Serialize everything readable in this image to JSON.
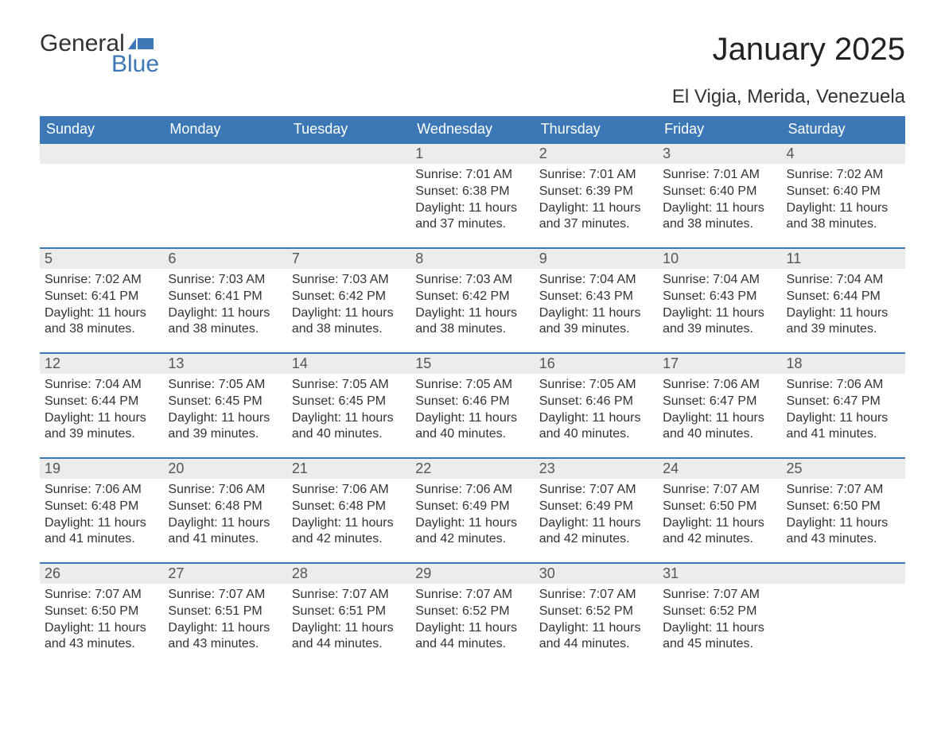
{
  "logo": {
    "word1": "General",
    "word2": "Blue",
    "shape_color": "#3b78b5"
  },
  "title": "January 2025",
  "location": "El Vigia, Merida, Venezuela",
  "colors": {
    "header_bg": "#3b78b5",
    "header_text": "#ffffff",
    "daynum_bg": "#ececec",
    "daynum_border": "#3b78b5",
    "body_text": "#333333",
    "page_bg": "#ffffff"
  },
  "layout": {
    "columns": 7,
    "rows": 5,
    "start_weekday": "Sunday"
  },
  "weekdays": [
    "Sunday",
    "Monday",
    "Tuesday",
    "Wednesday",
    "Thursday",
    "Friday",
    "Saturday"
  ],
  "weeks": [
    [
      null,
      null,
      null,
      {
        "n": "1",
        "sunrise": "7:01 AM",
        "sunset": "6:38 PM",
        "daylight": "11 hours and 37 minutes."
      },
      {
        "n": "2",
        "sunrise": "7:01 AM",
        "sunset": "6:39 PM",
        "daylight": "11 hours and 37 minutes."
      },
      {
        "n": "3",
        "sunrise": "7:01 AM",
        "sunset": "6:40 PM",
        "daylight": "11 hours and 38 minutes."
      },
      {
        "n": "4",
        "sunrise": "7:02 AM",
        "sunset": "6:40 PM",
        "daylight": "11 hours and 38 minutes."
      }
    ],
    [
      {
        "n": "5",
        "sunrise": "7:02 AM",
        "sunset": "6:41 PM",
        "daylight": "11 hours and 38 minutes."
      },
      {
        "n": "6",
        "sunrise": "7:03 AM",
        "sunset": "6:41 PM",
        "daylight": "11 hours and 38 minutes."
      },
      {
        "n": "7",
        "sunrise": "7:03 AM",
        "sunset": "6:42 PM",
        "daylight": "11 hours and 38 minutes."
      },
      {
        "n": "8",
        "sunrise": "7:03 AM",
        "sunset": "6:42 PM",
        "daylight": "11 hours and 38 minutes."
      },
      {
        "n": "9",
        "sunrise": "7:04 AM",
        "sunset": "6:43 PM",
        "daylight": "11 hours and 39 minutes."
      },
      {
        "n": "10",
        "sunrise": "7:04 AM",
        "sunset": "6:43 PM",
        "daylight": "11 hours and 39 minutes."
      },
      {
        "n": "11",
        "sunrise": "7:04 AM",
        "sunset": "6:44 PM",
        "daylight": "11 hours and 39 minutes."
      }
    ],
    [
      {
        "n": "12",
        "sunrise": "7:04 AM",
        "sunset": "6:44 PM",
        "daylight": "11 hours and 39 minutes."
      },
      {
        "n": "13",
        "sunrise": "7:05 AM",
        "sunset": "6:45 PM",
        "daylight": "11 hours and 39 minutes."
      },
      {
        "n": "14",
        "sunrise": "7:05 AM",
        "sunset": "6:45 PM",
        "daylight": "11 hours and 40 minutes."
      },
      {
        "n": "15",
        "sunrise": "7:05 AM",
        "sunset": "6:46 PM",
        "daylight": "11 hours and 40 minutes."
      },
      {
        "n": "16",
        "sunrise": "7:05 AM",
        "sunset": "6:46 PM",
        "daylight": "11 hours and 40 minutes."
      },
      {
        "n": "17",
        "sunrise": "7:06 AM",
        "sunset": "6:47 PM",
        "daylight": "11 hours and 40 minutes."
      },
      {
        "n": "18",
        "sunrise": "7:06 AM",
        "sunset": "6:47 PM",
        "daylight": "11 hours and 41 minutes."
      }
    ],
    [
      {
        "n": "19",
        "sunrise": "7:06 AM",
        "sunset": "6:48 PM",
        "daylight": "11 hours and 41 minutes."
      },
      {
        "n": "20",
        "sunrise": "7:06 AM",
        "sunset": "6:48 PM",
        "daylight": "11 hours and 41 minutes."
      },
      {
        "n": "21",
        "sunrise": "7:06 AM",
        "sunset": "6:48 PM",
        "daylight": "11 hours and 42 minutes."
      },
      {
        "n": "22",
        "sunrise": "7:06 AM",
        "sunset": "6:49 PM",
        "daylight": "11 hours and 42 minutes."
      },
      {
        "n": "23",
        "sunrise": "7:07 AM",
        "sunset": "6:49 PM",
        "daylight": "11 hours and 42 minutes."
      },
      {
        "n": "24",
        "sunrise": "7:07 AM",
        "sunset": "6:50 PM",
        "daylight": "11 hours and 42 minutes."
      },
      {
        "n": "25",
        "sunrise": "7:07 AM",
        "sunset": "6:50 PM",
        "daylight": "11 hours and 43 minutes."
      }
    ],
    [
      {
        "n": "26",
        "sunrise": "7:07 AM",
        "sunset": "6:50 PM",
        "daylight": "11 hours and 43 minutes."
      },
      {
        "n": "27",
        "sunrise": "7:07 AM",
        "sunset": "6:51 PM",
        "daylight": "11 hours and 43 minutes."
      },
      {
        "n": "28",
        "sunrise": "7:07 AM",
        "sunset": "6:51 PM",
        "daylight": "11 hours and 44 minutes."
      },
      {
        "n": "29",
        "sunrise": "7:07 AM",
        "sunset": "6:52 PM",
        "daylight": "11 hours and 44 minutes."
      },
      {
        "n": "30",
        "sunrise": "7:07 AM",
        "sunset": "6:52 PM",
        "daylight": "11 hours and 44 minutes."
      },
      {
        "n": "31",
        "sunrise": "7:07 AM",
        "sunset": "6:52 PM",
        "daylight": "11 hours and 45 minutes."
      },
      null
    ]
  ],
  "labels": {
    "sunrise": "Sunrise:",
    "sunset": "Sunset:",
    "daylight": "Daylight:"
  },
  "typography": {
    "title_fontsize": 40,
    "location_fontsize": 24,
    "header_fontsize": 18,
    "body_fontsize": 16
  }
}
